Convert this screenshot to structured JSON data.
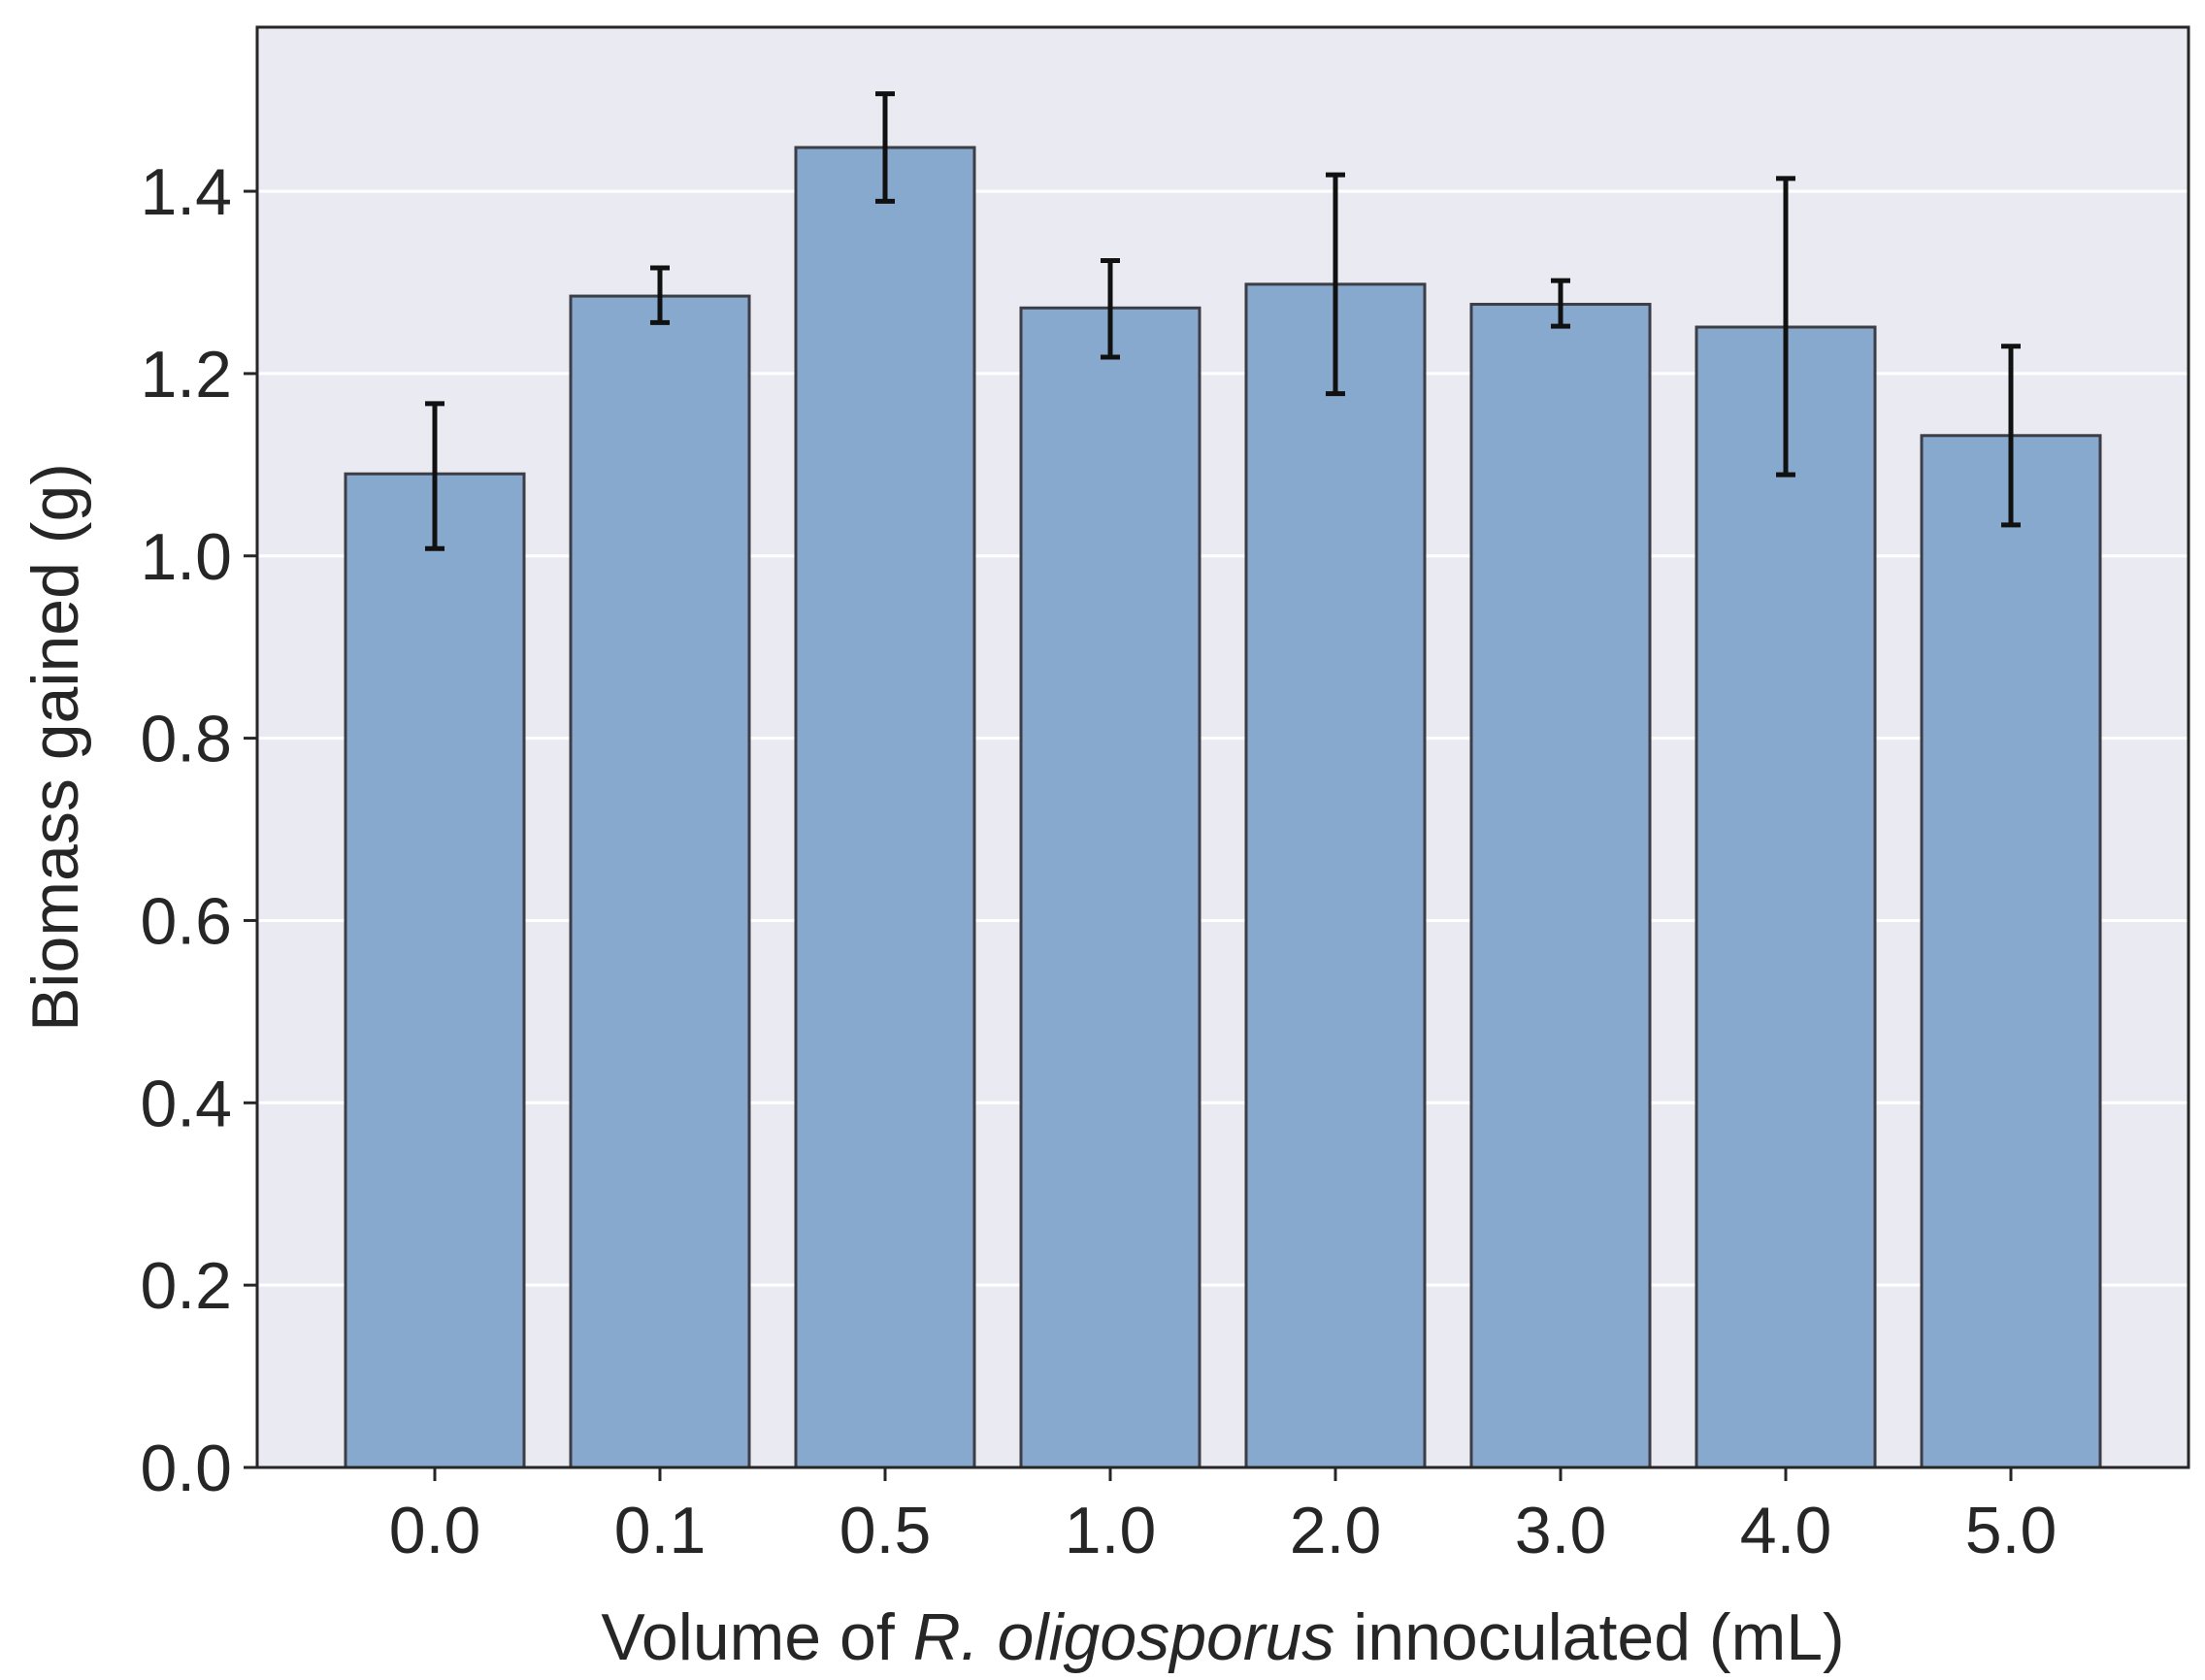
{
  "chart_data": {
    "type": "bar",
    "title": "",
    "xlabel": {
      "prefix": "Volume of ",
      "italic": "R. oligosporus",
      "suffix": " innoculated (mL)"
    },
    "ylabel": "Biomass gained (g)",
    "categories": [
      "0.0",
      "0.1",
      "0.5",
      "1.0",
      "2.0",
      "3.0",
      "4.0",
      "5.0"
    ],
    "values": [
      1.09,
      1.285,
      1.448,
      1.272,
      1.298,
      1.276,
      1.251,
      1.132
    ],
    "error_low": [
      1.008,
      1.256,
      1.389,
      1.218,
      1.178,
      1.252,
      1.089,
      1.034
    ],
    "error_high": [
      1.167,
      1.316,
      1.507,
      1.324,
      1.418,
      1.302,
      1.414,
      1.23
    ],
    "ylim": [
      0,
      1.58
    ],
    "yticks": [
      0.0,
      0.2,
      0.4,
      0.6,
      0.8,
      1.0,
      1.2,
      1.4
    ],
    "ytick_labels": [
      "0.0",
      "0.2",
      "0.4",
      "0.6",
      "0.8",
      "1.0",
      "1.2",
      "1.4"
    ],
    "grid": "horizontal",
    "colors": {
      "bar_fill": "#87a9cd",
      "bar_edge": "#3d3d45",
      "plot_background": "#eaeaf2",
      "grid": "#ffffff",
      "error_bar": "#111111",
      "frame": "#262626",
      "text": "#262626"
    }
  }
}
